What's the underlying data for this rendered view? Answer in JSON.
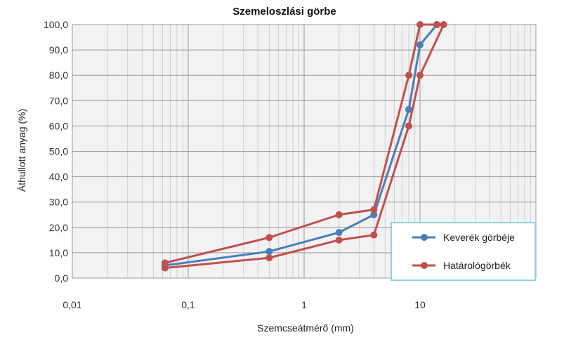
{
  "chart_data": {
    "type": "line",
    "title": "Szemeloszlási görbe",
    "xlabel": "Szemcseátmérő (mm)",
    "ylabel": "Áthullott anyag (%)",
    "x_scale": "log",
    "xlim": [
      0.01,
      100
    ],
    "ylim": [
      0,
      100
    ],
    "grid": true,
    "legend_position": "bottom-right",
    "x_ticks": [
      "0,01",
      "0,1",
      "1",
      "10"
    ],
    "y_ticks": [
      "0,0",
      "10,0",
      "20,0",
      "30,0",
      "40,0",
      "50,0",
      "60,0",
      "70,0",
      "80,0",
      "90,0",
      "100,0"
    ],
    "series": [
      {
        "name": "Keverék görbéje",
        "color": "#4a7ebb",
        "points": [
          [
            0.063,
            5
          ],
          [
            0.5,
            10.5
          ],
          [
            2,
            18
          ],
          [
            4,
            25
          ],
          [
            8,
            66.5
          ],
          [
            10,
            92
          ],
          [
            14,
            100
          ]
        ]
      },
      {
        "name": "Határológörbék",
        "color": "#c0504d",
        "points": [
          [
            0.063,
            6
          ],
          [
            0.5,
            16
          ],
          [
            2,
            25
          ],
          [
            4,
            27
          ],
          [
            8,
            80
          ],
          [
            10,
            100
          ],
          [
            14,
            100
          ]
        ]
      },
      {
        "name": "",
        "legend": false,
        "color": "#c0504d",
        "points": [
          [
            0.063,
            4
          ],
          [
            0.5,
            8
          ],
          [
            2,
            15
          ],
          [
            4,
            17
          ],
          [
            8,
            60
          ],
          [
            10,
            80
          ],
          [
            16,
            100
          ]
        ]
      }
    ]
  }
}
